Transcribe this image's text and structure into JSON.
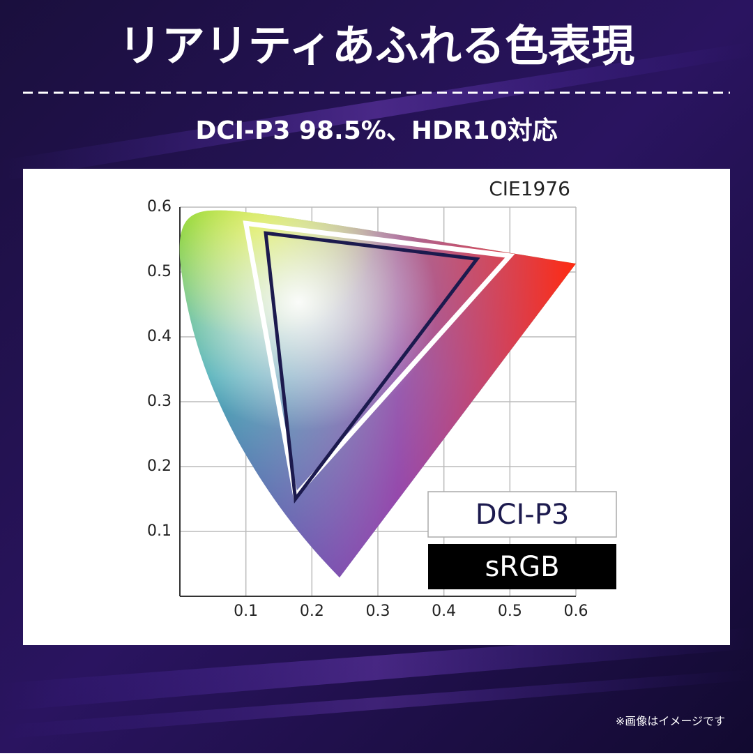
{
  "header": {
    "title": "リアリティあふれる色表現",
    "subtitle": "DCI-P3 98.5%、HDR10対応"
  },
  "footnote": "※画像はイメージです",
  "chart_data": {
    "type": "gamut",
    "title": "CIE1976",
    "xlim": [
      0,
      0.6
    ],
    "ylim": [
      0,
      0.6
    ],
    "xticks": [
      0.1,
      0.2,
      0.3,
      0.4,
      0.5,
      0.6
    ],
    "yticks": [
      0.1,
      0.2,
      0.3,
      0.4,
      0.5,
      0.6
    ],
    "grid": true,
    "series": [
      {
        "name": "DCI-P3",
        "color": "#ffffff",
        "x": [
          0.1,
          0.5,
          0.175
        ],
        "values": [
          0.575,
          0.525,
          0.155
        ]
      },
      {
        "name": "sRGB",
        "color": "#1c1a4e",
        "x": [
          0.13,
          0.45,
          0.175
        ],
        "values": [
          0.56,
          0.52,
          0.15
        ]
      }
    ]
  }
}
